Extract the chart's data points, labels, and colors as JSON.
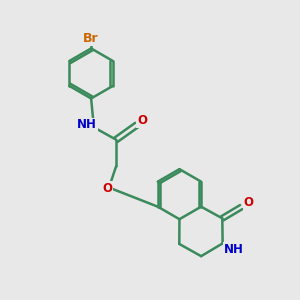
{
  "background_color": "#e8e8e8",
  "bond_color": "#3a8a5c",
  "bond_width": 1.8,
  "atom_colors": {
    "Br": "#cc6600",
    "N": "#0000cc",
    "O": "#cc0000"
  },
  "font_size": 8.5,
  "fig_width": 3.0,
  "fig_height": 3.0,
  "xlim": [
    0,
    10
  ],
  "ylim": [
    0,
    10
  ]
}
